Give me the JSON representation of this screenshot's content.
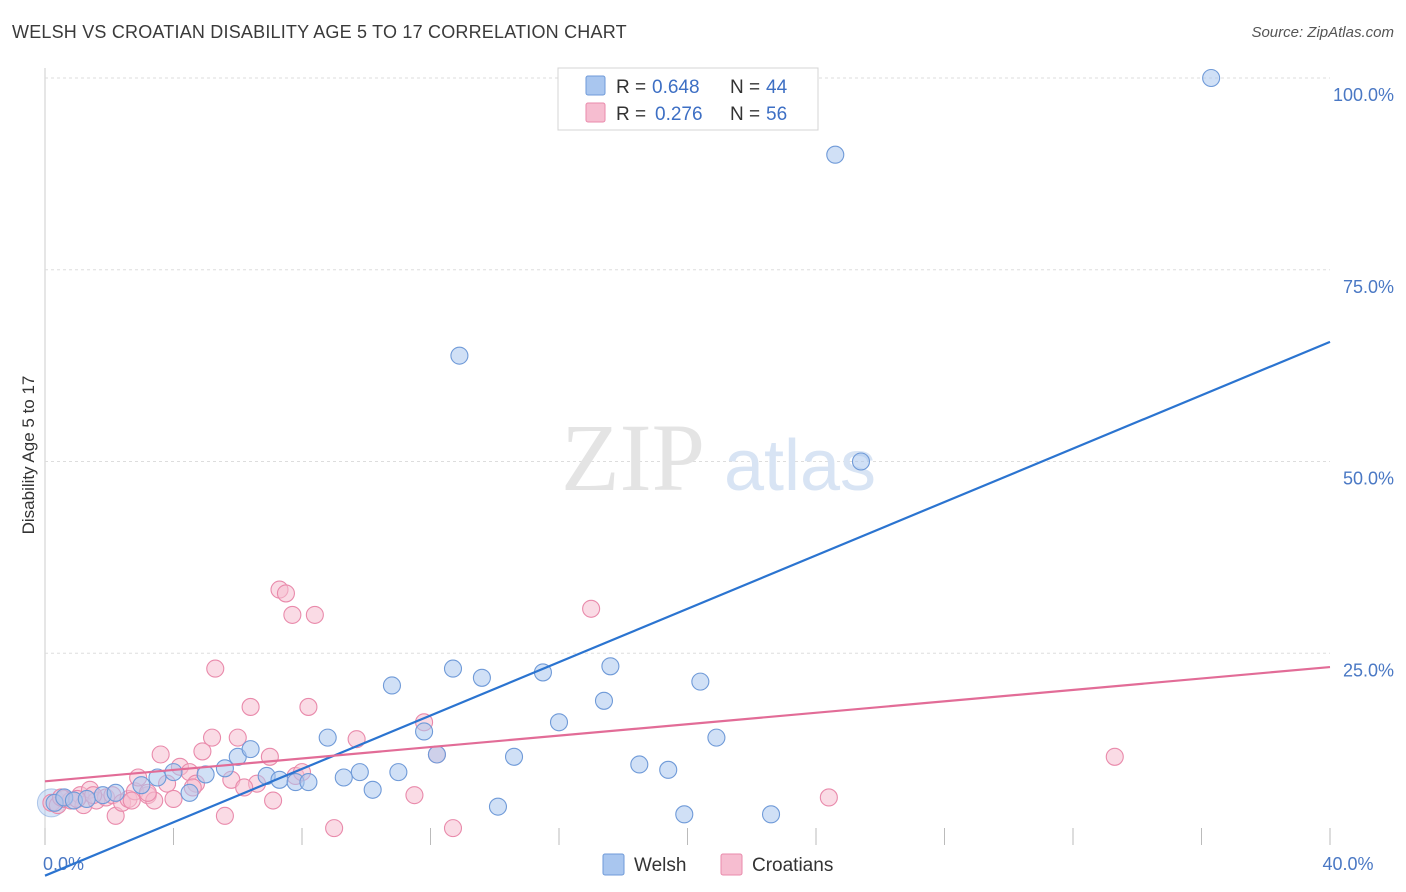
{
  "title": "WELSH VS CROATIAN DISABILITY AGE 5 TO 17 CORRELATION CHART",
  "source": "Source: ZipAtlas.com",
  "watermark": {
    "zip": "ZIP",
    "atlas": "atlas"
  },
  "colors": {
    "welsh_fill": "#a9c6ef",
    "welsh_stroke": "#6f9ad8",
    "welsh_line": "#2b74d0",
    "croatians_fill": "#f6bdd0",
    "croatians_stroke": "#e98aab",
    "croatians_line": "#e26c97",
    "grid": "#dddddd",
    "tick_text": "#4a78c4"
  },
  "stats": [
    {
      "r_label": "R =",
      "r_value": "0.648",
      "n_label": "N =",
      "n_value": "44"
    },
    {
      "r_label": "R =",
      "r_value": "0.276",
      "n_label": "N =",
      "n_value": "56"
    }
  ],
  "chart_data": {
    "type": "scatter",
    "title": "WELSH VS CROATIAN DISABILITY AGE 5 TO 17 CORRELATION CHART",
    "xlabel": "",
    "ylabel": "Disability Age 5 to 17",
    "xlim": [
      0,
      40
    ],
    "ylim": [
      0,
      100
    ],
    "x_tick_labels": [
      {
        "value": 0,
        "label": "0.0%"
      },
      {
        "value": 40,
        "label": "40.0%"
      }
    ],
    "x_minor_ticks": [
      0,
      4,
      8,
      12,
      16,
      20,
      24,
      28,
      32,
      36,
      40
    ],
    "y_ticks": [
      {
        "value": 25,
        "label": "25.0%"
      },
      {
        "value": 50,
        "label": "50.0%"
      },
      {
        "value": 75,
        "label": "75.0%"
      },
      {
        "value": 100,
        "label": "100.0%"
      }
    ],
    "grid": true,
    "legend": "bottom-center",
    "series": [
      {
        "name": "Welsh",
        "trendline": {
          "x": [
            0,
            40
          ],
          "y": [
            -4.0,
            65.6
          ]
        },
        "points": [
          {
            "x": 0.3,
            "y": 5.5
          },
          {
            "x": 0.6,
            "y": 6.2
          },
          {
            "x": 0.9,
            "y": 5.8
          },
          {
            "x": 1.3,
            "y": 6.0
          },
          {
            "x": 1.8,
            "y": 6.5
          },
          {
            "x": 2.2,
            "y": 6.8
          },
          {
            "x": 3.0,
            "y": 7.8
          },
          {
            "x": 3.5,
            "y": 8.8
          },
          {
            "x": 4.0,
            "y": 9.5
          },
          {
            "x": 4.5,
            "y": 6.8
          },
          {
            "x": 5.0,
            "y": 9.2
          },
          {
            "x": 5.6,
            "y": 10.0
          },
          {
            "x": 6.0,
            "y": 11.5
          },
          {
            "x": 6.4,
            "y": 12.5
          },
          {
            "x": 6.9,
            "y": 9.0
          },
          {
            "x": 7.3,
            "y": 8.5
          },
          {
            "x": 7.8,
            "y": 8.2
          },
          {
            "x": 8.2,
            "y": 8.2
          },
          {
            "x": 8.8,
            "y": 14.0
          },
          {
            "x": 9.3,
            "y": 8.8
          },
          {
            "x": 9.8,
            "y": 9.5
          },
          {
            "x": 10.2,
            "y": 7.2
          },
          {
            "x": 10.8,
            "y": 20.8
          },
          {
            "x": 11.0,
            "y": 9.5
          },
          {
            "x": 11.8,
            "y": 14.8
          },
          {
            "x": 12.2,
            "y": 11.8
          },
          {
            "x": 12.7,
            "y": 23.0
          },
          {
            "x": 12.9,
            "y": 63.8
          },
          {
            "x": 13.6,
            "y": 21.8
          },
          {
            "x": 14.1,
            "y": 5.0
          },
          {
            "x": 14.6,
            "y": 11.5
          },
          {
            "x": 15.5,
            "y": 22.5
          },
          {
            "x": 16.0,
            "y": 16.0
          },
          {
            "x": 17.4,
            "y": 18.8
          },
          {
            "x": 17.6,
            "y": 23.3
          },
          {
            "x": 18.5,
            "y": 10.5
          },
          {
            "x": 19.4,
            "y": 9.8
          },
          {
            "x": 19.9,
            "y": 4.0
          },
          {
            "x": 20.4,
            "y": 21.3
          },
          {
            "x": 20.9,
            "y": 14.0
          },
          {
            "x": 22.6,
            "y": 4.0
          },
          {
            "x": 24.6,
            "y": 90.0
          },
          {
            "x": 25.4,
            "y": 50.0
          },
          {
            "x": 36.3,
            "y": 100.0
          }
        ]
      },
      {
        "name": "Croatians",
        "trendline": {
          "x": [
            0,
            40
          ],
          "y": [
            8.3,
            23.2
          ]
        },
        "points": [
          {
            "x": 0.2,
            "y": 5.5
          },
          {
            "x": 0.4,
            "y": 5.2
          },
          {
            "x": 0.6,
            "y": 6.0
          },
          {
            "x": 0.8,
            "y": 5.8
          },
          {
            "x": 1.1,
            "y": 6.5
          },
          {
            "x": 1.2,
            "y": 5.2
          },
          {
            "x": 1.4,
            "y": 7.2
          },
          {
            "x": 1.6,
            "y": 5.8
          },
          {
            "x": 1.9,
            "y": 6.2
          },
          {
            "x": 2.1,
            "y": 6.5
          },
          {
            "x": 2.2,
            "y": 3.8
          },
          {
            "x": 2.4,
            "y": 5.5
          },
          {
            "x": 2.6,
            "y": 6.0
          },
          {
            "x": 2.8,
            "y": 7.0
          },
          {
            "x": 2.9,
            "y": 8.8
          },
          {
            "x": 3.2,
            "y": 6.5
          },
          {
            "x": 3.4,
            "y": 5.8
          },
          {
            "x": 3.6,
            "y": 11.8
          },
          {
            "x": 3.8,
            "y": 8.0
          },
          {
            "x": 4.0,
            "y": 6.0
          },
          {
            "x": 4.2,
            "y": 10.2
          },
          {
            "x": 4.5,
            "y": 9.5
          },
          {
            "x": 4.7,
            "y": 8.0
          },
          {
            "x": 4.9,
            "y": 12.2
          },
          {
            "x": 5.2,
            "y": 14.0
          },
          {
            "x": 5.3,
            "y": 23.0
          },
          {
            "x": 5.6,
            "y": 3.8
          },
          {
            "x": 5.8,
            "y": 8.5
          },
          {
            "x": 6.0,
            "y": 14.0
          },
          {
            "x": 6.4,
            "y": 18.0
          },
          {
            "x": 6.6,
            "y": 8.0
          },
          {
            "x": 7.0,
            "y": 11.5
          },
          {
            "x": 7.1,
            "y": 5.8
          },
          {
            "x": 7.3,
            "y": 33.3
          },
          {
            "x": 7.5,
            "y": 32.8
          },
          {
            "x": 7.7,
            "y": 30.0
          },
          {
            "x": 7.8,
            "y": 9.0
          },
          {
            "x": 8.0,
            "y": 9.5
          },
          {
            "x": 8.2,
            "y": 18.0
          },
          {
            "x": 8.4,
            "y": 30.0
          },
          {
            "x": 9.0,
            "y": 2.2
          },
          {
            "x": 9.7,
            "y": 13.8
          },
          {
            "x": 11.5,
            "y": 6.5
          },
          {
            "x": 11.8,
            "y": 16.0
          },
          {
            "x": 12.2,
            "y": 11.8
          },
          {
            "x": 12.7,
            "y": 2.2
          },
          {
            "x": 17.0,
            "y": 30.8
          },
          {
            "x": 24.4,
            "y": 6.2
          },
          {
            "x": 33.3,
            "y": 11.5
          },
          {
            "x": 3.2,
            "y": 6.8
          },
          {
            "x": 1.5,
            "y": 6.5
          },
          {
            "x": 2.7,
            "y": 5.8
          },
          {
            "x": 0.5,
            "y": 6.2
          },
          {
            "x": 4.6,
            "y": 7.5
          },
          {
            "x": 6.2,
            "y": 7.5
          },
          {
            "x": 1.0,
            "y": 6.0
          }
        ]
      }
    ]
  }
}
